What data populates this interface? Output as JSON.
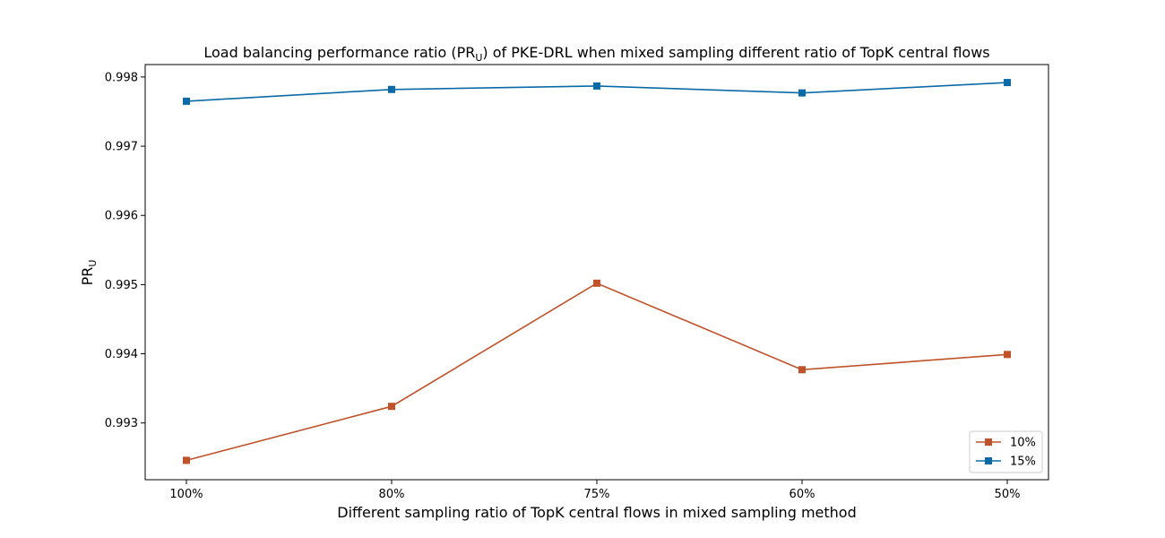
{
  "chart_data": {
    "type": "line",
    "title_main": "Load balancing performance ratio (PR",
    "title_sub": "U",
    "title_rest": ") of PKE-DRL when mixed sampling different ratio of TopK central flows",
    "xlabel": "Different sampling ratio of TopK central flows in mixed sampling method",
    "ylabel_main": "PR",
    "ylabel_sub": "U",
    "categories": [
      "100%",
      "80%",
      "75%",
      "60%",
      "50%"
    ],
    "yticks": [
      "0.993",
      "0.994",
      "0.995",
      "0.996",
      "0.997",
      "0.998"
    ],
    "ylim": [
      0.99218,
      0.99818
    ],
    "grid": false,
    "legend_position": "lower-right",
    "series": [
      {
        "name": "10%",
        "color": "#c0522a",
        "marker": "square",
        "values": [
          0.99246,
          0.99324,
          0.99502,
          0.99377,
          0.99399
        ]
      },
      {
        "name": "15%",
        "color": "#0a6aa8",
        "marker": "square",
        "values": [
          0.99765,
          0.99782,
          0.99787,
          0.99777,
          0.99792
        ]
      }
    ]
  }
}
